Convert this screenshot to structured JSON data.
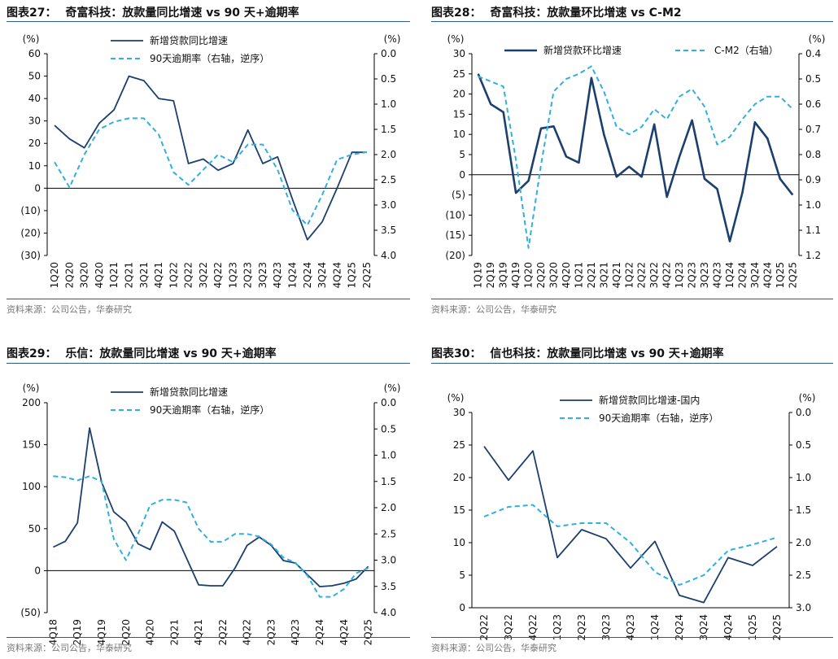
{
  "colors": {
    "primary": "#1c3f6e",
    "secondary": "#2fb0e0",
    "rule": "#2a5a8e",
    "source": "#777777"
  },
  "source_note": "资料来源：公司公告，华泰研究",
  "chart_data": [
    {
      "type": "line",
      "fig": "图表27：",
      "title": "奇富科技：放款量同比增速 vs 90 天+逾期率",
      "left_unit": "(%)",
      "right_unit": "(%)",
      "categories": [
        "1Q20",
        "2Q20",
        "3Q20",
        "4Q20",
        "1Q21",
        "2Q21",
        "3Q21",
        "4Q21",
        "1Q22",
        "2Q22",
        "3Q22",
        "4Q22",
        "1Q23",
        "2Q23",
        "3Q23",
        "4Q23",
        "1Q24",
        "2Q24",
        "3Q24",
        "4Q24",
        "1Q25",
        "2Q25"
      ],
      "ylim_left": [
        -30,
        60
      ],
      "left_ticks": [
        "(30)",
        "(20)",
        "(10)",
        "0",
        "10",
        "20",
        "30",
        "40",
        "50",
        "60"
      ],
      "ylim_right": [
        4.0,
        0.0
      ],
      "right_ticks": [
        "4.0",
        "3.5",
        "3.0",
        "2.5",
        "2.0",
        "1.5",
        "1.0",
        "0.5",
        "0.0"
      ],
      "legend": [
        "新增贷款同比增速",
        "90天逾期率（右轴，逆序）"
      ],
      "series": [
        {
          "name": "新增贷款同比增速",
          "axis": "left",
          "style": "solid",
          "values": [
            28,
            22,
            18,
            29,
            35,
            50,
            48,
            40,
            39,
            11,
            13,
            8,
            11,
            26,
            11,
            14,
            -5,
            -23,
            -15,
            0,
            16,
            16
          ]
        },
        {
          "name": "90天逾期率（右轴，逆序）",
          "axis": "right",
          "style": "dashed",
          "values": [
            2.15,
            2.65,
            2.0,
            1.5,
            1.35,
            1.28,
            1.28,
            1.6,
            2.35,
            2.6,
            2.3,
            2.0,
            2.15,
            1.8,
            1.8,
            2.3,
            3.1,
            3.4,
            2.8,
            2.1,
            2.0,
            1.95
          ]
        }
      ]
    },
    {
      "type": "line",
      "fig": "图表28：",
      "title": "奇富科技：放款量环比增速 vs C-M2",
      "left_unit": "(%)",
      "right_unit": "(%)",
      "categories": [
        "1Q19",
        "2Q19",
        "3Q19",
        "4Q19",
        "1Q20",
        "2Q20",
        "3Q20",
        "4Q20",
        "1Q21",
        "2Q21",
        "3Q21",
        "4Q21",
        "1Q22",
        "2Q22",
        "3Q22",
        "4Q22",
        "1Q23",
        "2Q23",
        "3Q23",
        "4Q23",
        "1Q24",
        "2Q24",
        "3Q24",
        "4Q24",
        "1Q25",
        "2Q25"
      ],
      "ylim_left": [
        -20,
        30
      ],
      "left_ticks": [
        "(20)",
        "(15)",
        "(10)",
        "(5)",
        "0",
        "5",
        "10",
        "15",
        "20",
        "25",
        "30"
      ],
      "ylim_right": [
        1.2,
        0.4
      ],
      "right_ticks": [
        "1.2",
        "1.1",
        "1.0",
        "0.9",
        "0.8",
        "0.7",
        "0.6",
        "0.5",
        "0.4"
      ],
      "legend": [
        "新增贷款环比增速",
        "C-M2（右轴）"
      ],
      "series": [
        {
          "name": "新增贷款环比增速",
          "axis": "left",
          "style": "solid",
          "values": [
            25,
            17.5,
            15.5,
            -4.5,
            -1.5,
            11.5,
            12,
            4.5,
            3,
            24,
            10,
            -0.5,
            2,
            -0.5,
            12.5,
            -5.5,
            4.5,
            13.5,
            -1,
            -3.5,
            -16.5,
            -4.5,
            13,
            9,
            -1,
            -5
          ]
        },
        {
          "name": "C-M2（右轴）",
          "axis": "right",
          "style": "dashed",
          "values": [
            0.49,
            0.51,
            0.53,
            0.82,
            1.17,
            0.84,
            0.55,
            0.5,
            0.48,
            0.45,
            0.55,
            0.69,
            0.72,
            0.69,
            0.62,
            0.66,
            0.57,
            0.54,
            0.61,
            0.76,
            0.73,
            0.66,
            0.6,
            0.57,
            0.57,
            0.62
          ]
        }
      ]
    },
    {
      "type": "line",
      "fig": "图表29：",
      "title": "乐信：放款量同比增速  vs 90 天+逾期率",
      "left_unit": "(%)",
      "right_unit": "(%)",
      "categories": [
        "4Q18",
        "1Q19",
        "2Q19",
        "3Q19",
        "4Q19",
        "1Q20",
        "2Q20",
        "3Q20",
        "4Q20",
        "1Q21",
        "2Q21",
        "3Q21",
        "4Q21",
        "1Q22",
        "2Q22",
        "3Q22",
        "4Q22",
        "1Q23",
        "2Q23",
        "3Q23",
        "4Q23",
        "1Q24",
        "2Q24",
        "3Q24",
        "4Q24",
        "1Q25",
        "2Q25"
      ],
      "label_categories": [
        "4Q18",
        "2Q19",
        "4Q19",
        "2Q20",
        "4Q20",
        "2Q21",
        "4Q21",
        "2Q22",
        "4Q22",
        "2Q23",
        "4Q23",
        "2Q24",
        "4Q24",
        "2Q25"
      ],
      "ylim_left": [
        -50,
        200
      ],
      "left_ticks": [
        "(50)",
        "0",
        "50",
        "100",
        "150",
        "200"
      ],
      "ylim_right": [
        4.0,
        0.0
      ],
      "right_ticks": [
        "4.0",
        "3.5",
        "3.0",
        "2.5",
        "2.0",
        "1.5",
        "1.0",
        "0.5",
        "0.0"
      ],
      "legend": [
        "新增贷款同比增速",
        "90天逾期率（右轴，逆序）"
      ],
      "series": [
        {
          "name": "新增贷款同比增速",
          "axis": "left",
          "style": "solid",
          "values": [
            28,
            35,
            57,
            170,
            105,
            70,
            58,
            32,
            25,
            58,
            47,
            15,
            -17,
            -18,
            -18,
            3,
            30,
            40,
            30,
            12,
            9,
            -5,
            -19,
            -18,
            -15,
            -10,
            5
          ]
        },
        {
          "name": "90天逾期率（右轴，逆序）",
          "axis": "right",
          "style": "dashed",
          "values": [
            1.4,
            1.42,
            1.48,
            1.4,
            1.5,
            2.6,
            3.0,
            2.5,
            1.95,
            1.85,
            1.85,
            1.9,
            2.4,
            2.65,
            2.65,
            2.5,
            2.5,
            2.55,
            2.7,
            2.95,
            3.05,
            3.3,
            3.7,
            3.7,
            3.55,
            3.25,
            3.15
          ]
        }
      ]
    },
    {
      "type": "line",
      "fig": "图表30：",
      "title": "信也科技：放款量同比增速 vs 90 天+逾期率",
      "left_unit": "(%)",
      "right_unit": "(%)",
      "categories": [
        "2Q22",
        "3Q22",
        "4Q22",
        "1Q23",
        "2Q23",
        "3Q23",
        "4Q23",
        "1Q24",
        "2Q24",
        "3Q24",
        "4Q24",
        "1Q25",
        "2Q25"
      ],
      "ylim_left": [
        0,
        30
      ],
      "left_ticks": [
        "0",
        "5",
        "10",
        "15",
        "20",
        "25",
        "30"
      ],
      "ylim_right": [
        3.0,
        0.0
      ],
      "right_ticks": [
        "3.0",
        "2.5",
        "2.0",
        "1.5",
        "1.0",
        "0.5",
        "0.0"
      ],
      "legend": [
        "新增贷款同比增速-国内",
        "90天逾期率（右轴，逆序）"
      ],
      "series": [
        {
          "name": "新增贷款同比增速-国内",
          "axis": "left",
          "style": "solid",
          "values": [
            24.8,
            19.6,
            24.1,
            7.7,
            12,
            10.6,
            6.1,
            10.2,
            1.9,
            0.8,
            7.7,
            6.5,
            9.4
          ]
        },
        {
          "name": "90天逾期率（右轴，逆序）",
          "axis": "right",
          "style": "dashed",
          "values": [
            1.6,
            1.45,
            1.42,
            1.75,
            1.7,
            1.7,
            2.0,
            2.45,
            2.65,
            2.5,
            2.12,
            2.03,
            1.92
          ]
        }
      ]
    }
  ]
}
